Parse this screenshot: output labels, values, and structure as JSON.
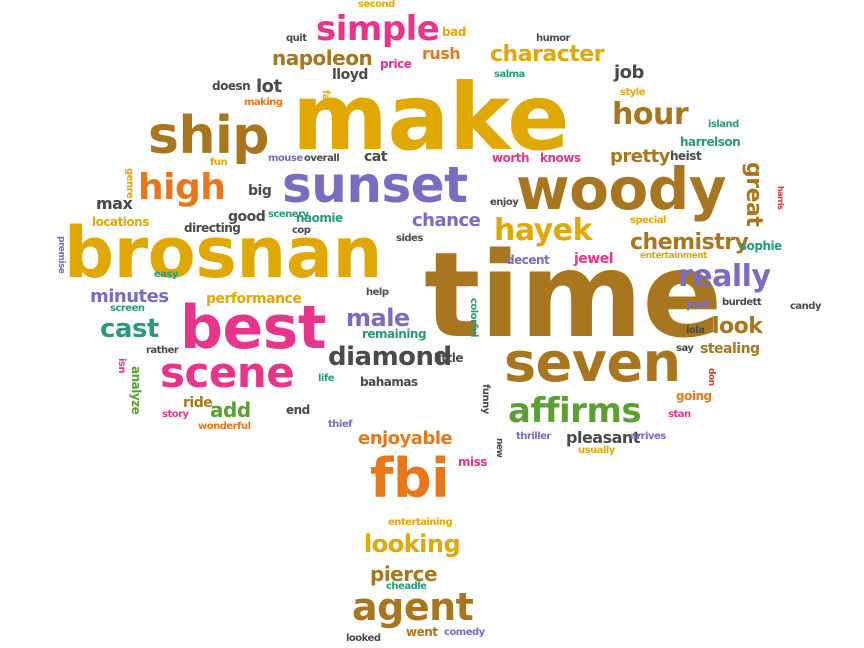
{
  "palette": {
    "gold": "#e0a800",
    "brown": "#a8761e",
    "orange": "#e8761a",
    "pink": "#e8348a",
    "purple": "#7a6cc0",
    "green": "#5aa032",
    "teal": "#2a9a7a",
    "gray": "#4a4a4a",
    "red": "#d83a2a"
  },
  "words": [
    {
      "text": "time",
      "color": "brown"
    },
    {
      "text": "make",
      "color": "gold"
    },
    {
      "text": "brosnan",
      "color": "gold"
    },
    {
      "text": "woody",
      "color": "brown"
    },
    {
      "text": "sunset",
      "color": "purple"
    },
    {
      "text": "best",
      "color": "pink"
    },
    {
      "text": "seven",
      "color": "brown"
    },
    {
      "text": "ship",
      "color": "brown"
    },
    {
      "text": "fbi",
      "color": "orange"
    },
    {
      "text": "scene",
      "color": "pink"
    },
    {
      "text": "affirms",
      "color": "green"
    },
    {
      "text": "agent",
      "color": "brown"
    },
    {
      "text": "high",
      "color": "orange"
    },
    {
      "text": "simple",
      "color": "pink"
    },
    {
      "text": "hayek",
      "color": "gold"
    },
    {
      "text": "really",
      "color": "purple"
    },
    {
      "text": "diamond",
      "color": "gray"
    },
    {
      "text": "hour",
      "color": "brown"
    },
    {
      "text": "character",
      "color": "gold"
    },
    {
      "text": "napoleon",
      "color": "brown"
    },
    {
      "text": "looking",
      "color": "gold"
    },
    {
      "text": "cast",
      "color": "teal"
    },
    {
      "text": "male",
      "color": "purple"
    },
    {
      "text": "chemistry",
      "color": "brown"
    },
    {
      "text": "look",
      "color": "brown"
    },
    {
      "text": "great",
      "color": "brown"
    },
    {
      "text": "pierce",
      "color": "brown"
    },
    {
      "text": "chance",
      "color": "purple"
    },
    {
      "text": "minutes",
      "color": "purple"
    },
    {
      "text": "add",
      "color": "green"
    },
    {
      "text": "pretty",
      "color": "brown"
    },
    {
      "text": "enjoyable",
      "color": "orange"
    },
    {
      "text": "pleasant",
      "color": "gray"
    },
    {
      "text": "max",
      "color": "gray"
    },
    {
      "text": "lot",
      "color": "gray"
    },
    {
      "text": "job",
      "color": "gray"
    },
    {
      "text": "rush",
      "color": "orange"
    },
    {
      "text": "performance",
      "color": "gold"
    },
    {
      "text": "stealing",
      "color": "brown"
    },
    {
      "text": "ride",
      "color": "brown"
    },
    {
      "text": "naomie",
      "color": "teal"
    },
    {
      "text": "locations",
      "color": "gold"
    },
    {
      "text": "good",
      "color": "gray"
    },
    {
      "text": "big",
      "color": "gray"
    },
    {
      "text": "cat",
      "color": "gray"
    },
    {
      "text": "heist",
      "color": "gray"
    },
    {
      "text": "harrelson",
      "color": "teal"
    },
    {
      "text": "doesn",
      "color": "gray"
    },
    {
      "text": "lloyd",
      "color": "gray"
    },
    {
      "text": "price",
      "color": "pink"
    },
    {
      "text": "bad",
      "color": "gold"
    },
    {
      "text": "second",
      "color": "gold"
    },
    {
      "text": "humor",
      "color": "gray"
    },
    {
      "text": "quit",
      "color": "gray"
    },
    {
      "text": "far",
      "color": "gold"
    },
    {
      "text": "making",
      "color": "orange"
    },
    {
      "text": "salma",
      "color": "teal"
    },
    {
      "text": "style",
      "color": "gold"
    },
    {
      "text": "island",
      "color": "teal"
    },
    {
      "text": "genre",
      "color": "gold"
    },
    {
      "text": "fun",
      "color": "gold"
    },
    {
      "text": "mouse",
      "color": "purple"
    },
    {
      "text": "overall",
      "color": "gray"
    },
    {
      "text": "worth",
      "color": "pink"
    },
    {
      "text": "knows",
      "color": "pink"
    },
    {
      "text": "enjoy",
      "color": "gray"
    },
    {
      "text": "special",
      "color": "gold"
    },
    {
      "text": "harris",
      "color": "red"
    },
    {
      "text": "directing",
      "color": "gray"
    },
    {
      "text": "scenery",
      "color": "teal"
    },
    {
      "text": "cop",
      "color": "gray"
    },
    {
      "text": "sides",
      "color": "gray"
    },
    {
      "text": "jewel",
      "color": "pink"
    },
    {
      "text": "decent",
      "color": "purple"
    },
    {
      "text": "entertainment",
      "color": "gold"
    },
    {
      "text": "sophie",
      "color": "teal"
    },
    {
      "text": "premise",
      "color": "purple"
    },
    {
      "text": "easy",
      "color": "teal"
    },
    {
      "text": "help",
      "color": "gray"
    },
    {
      "text": "colorful",
      "color": "teal"
    },
    {
      "text": "pair",
      "color": "purple"
    },
    {
      "text": "burdett",
      "color": "gray"
    },
    {
      "text": "candy",
      "color": "gray"
    },
    {
      "text": "screen",
      "color": "teal"
    },
    {
      "text": "remaining",
      "color": "teal"
    },
    {
      "text": "lola",
      "color": "gray"
    },
    {
      "text": "rather",
      "color": "gray"
    },
    {
      "text": "isn",
      "color": "pink"
    },
    {
      "text": "analyze",
      "color": "green"
    },
    {
      "text": "life",
      "color": "teal"
    },
    {
      "text": "bahamas",
      "color": "gray"
    },
    {
      "text": "little",
      "color": "gray"
    },
    {
      "text": "funny",
      "color": "gray"
    },
    {
      "text": "say",
      "color": "gray"
    },
    {
      "text": "don",
      "color": "red"
    },
    {
      "text": "going",
      "color": "orange"
    },
    {
      "text": "story",
      "color": "pink"
    },
    {
      "text": "wonderful",
      "color": "orange"
    },
    {
      "text": "end",
      "color": "gray"
    },
    {
      "text": "stan",
      "color": "pink"
    },
    {
      "text": "thief",
      "color": "purple"
    },
    {
      "text": "thriller",
      "color": "purple"
    },
    {
      "text": "arrives",
      "color": "purple"
    },
    {
      "text": "usually",
      "color": "gold"
    },
    {
      "text": "new",
      "color": "gray"
    },
    {
      "text": "miss",
      "color": "pink"
    },
    {
      "text": "entertaining",
      "color": "gold"
    },
    {
      "text": "cheadle",
      "color": "teal"
    },
    {
      "text": "went",
      "color": "brown"
    },
    {
      "text": "comedy",
      "color": "purple"
    },
    {
      "text": "looked",
      "color": "gray"
    }
  ]
}
